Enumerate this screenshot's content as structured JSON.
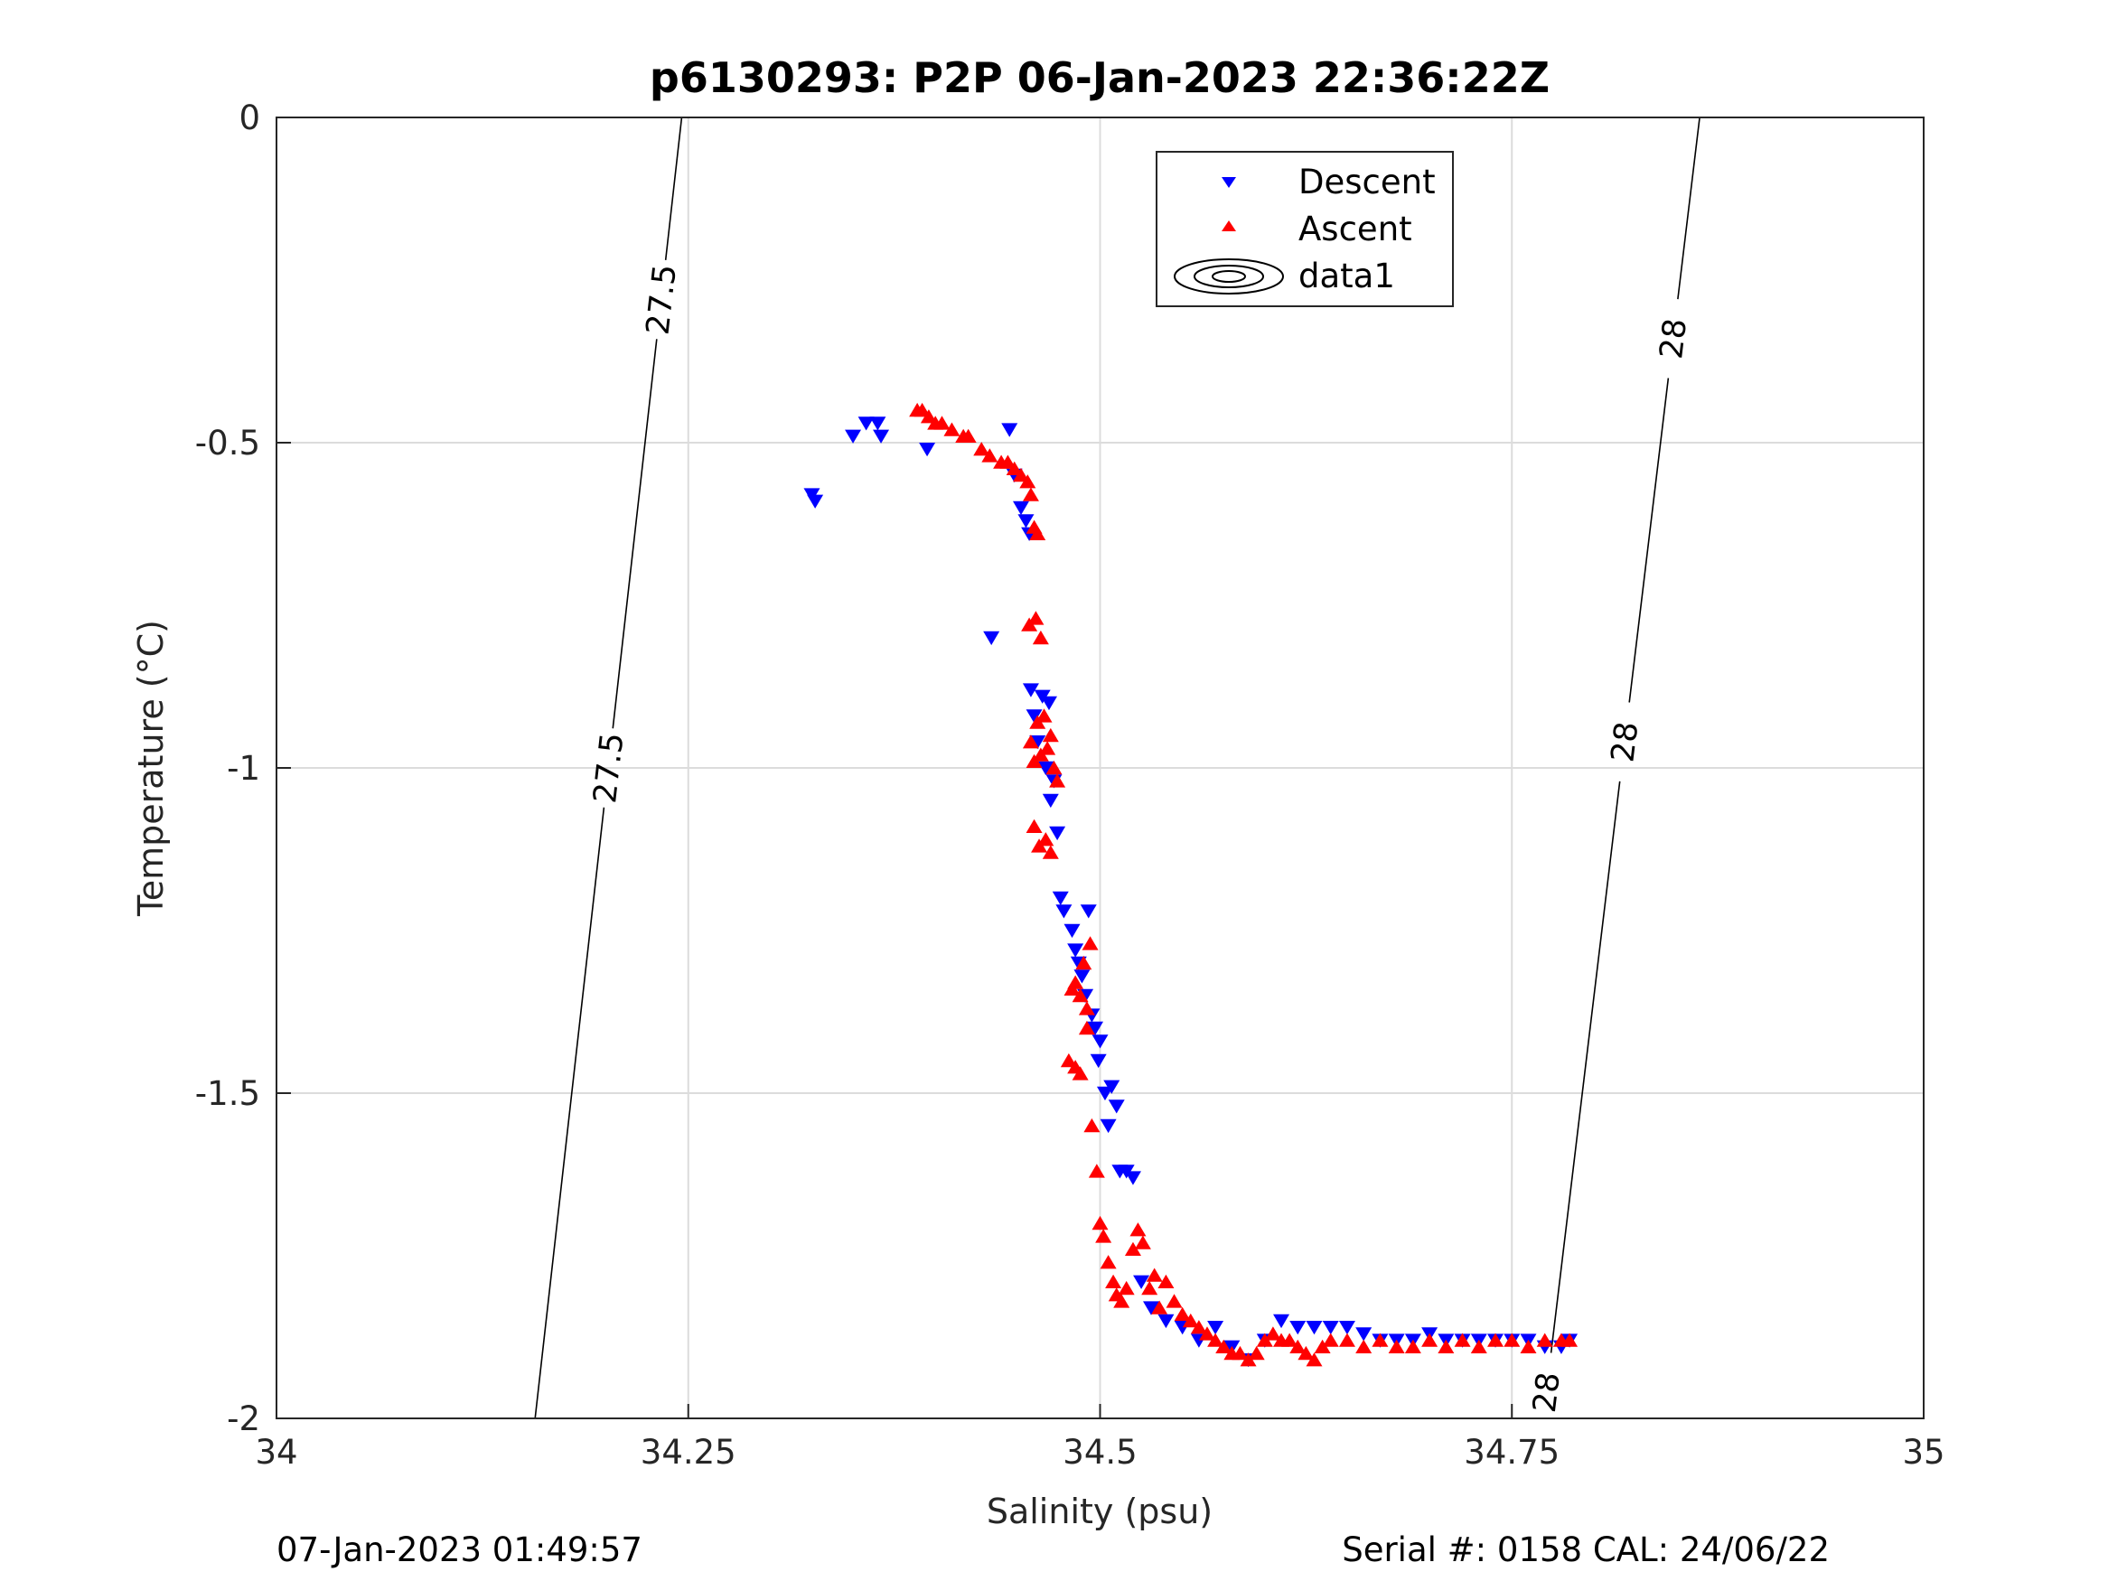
{
  "chart_data": {
    "type": "scatter",
    "title": "p6130293: P2P 06-Jan-2023 22:36:22Z",
    "xlabel": "Salinity (psu)",
    "ylabel": "Temperature (°C)",
    "xlim": [
      34,
      35
    ],
    "ylim": [
      -2,
      0
    ],
    "x_ticks": [
      34,
      34.25,
      34.5,
      34.75,
      35
    ],
    "x_tick_labels": [
      "34",
      "34.25",
      "34.5",
      "34.75",
      "35"
    ],
    "y_ticks": [
      0,
      -0.5,
      -1,
      -1.5,
      -2
    ],
    "y_tick_labels": [
      "0",
      "-0.5",
      "-1",
      "-1.5",
      "-2"
    ],
    "grid": true,
    "legend_position": "top-center",
    "colors": {
      "descent": "#0000ff",
      "ascent": "#ff0000",
      "contour": "#000000",
      "grid": "#dcdcdc"
    },
    "series": [
      {
        "name": "Descent",
        "marker": "triangle-down",
        "points": [
          [
            34.325,
            -0.58
          ],
          [
            34.327,
            -0.59
          ],
          [
            34.35,
            -0.49
          ],
          [
            34.358,
            -0.47
          ],
          [
            34.365,
            -0.47
          ],
          [
            34.367,
            -0.49
          ],
          [
            34.395,
            -0.51
          ],
          [
            34.434,
            -0.8
          ],
          [
            34.445,
            -0.48
          ],
          [
            34.448,
            -0.55
          ],
          [
            34.452,
            -0.6
          ],
          [
            34.455,
            -0.62
          ],
          [
            34.457,
            -0.64
          ],
          [
            34.458,
            -0.88
          ],
          [
            34.46,
            -0.92
          ],
          [
            34.462,
            -0.96
          ],
          [
            34.465,
            -0.89
          ],
          [
            34.467,
            -1.0
          ],
          [
            34.469,
            -0.9
          ],
          [
            34.47,
            -1.05
          ],
          [
            34.472,
            -1.02
          ],
          [
            34.474,
            -1.1
          ],
          [
            34.476,
            -1.2
          ],
          [
            34.478,
            -1.22
          ],
          [
            34.483,
            -1.25
          ],
          [
            34.485,
            -1.28
          ],
          [
            34.487,
            -1.3
          ],
          [
            34.489,
            -1.32
          ],
          [
            34.491,
            -1.35
          ],
          [
            34.493,
            -1.22
          ],
          [
            34.495,
            -1.38
          ],
          [
            34.497,
            -1.4
          ],
          [
            34.499,
            -1.45
          ],
          [
            34.5,
            -1.42
          ],
          [
            34.503,
            -1.5
          ],
          [
            34.505,
            -1.55
          ],
          [
            34.507,
            -1.49
          ],
          [
            34.51,
            -1.52
          ],
          [
            34.512,
            -1.62
          ],
          [
            34.516,
            -1.62
          ],
          [
            34.52,
            -1.63
          ],
          [
            34.525,
            -1.79
          ],
          [
            34.531,
            -1.83
          ],
          [
            34.54,
            -1.85
          ],
          [
            34.55,
            -1.86
          ],
          [
            34.56,
            -1.88
          ],
          [
            34.57,
            -1.86
          ],
          [
            34.58,
            -1.89
          ],
          [
            34.59,
            -1.91
          ],
          [
            34.6,
            -1.88
          ],
          [
            34.61,
            -1.85
          ],
          [
            34.62,
            -1.86
          ],
          [
            34.63,
            -1.86
          ],
          [
            34.64,
            -1.86
          ],
          [
            34.65,
            -1.86
          ],
          [
            34.66,
            -1.87
          ],
          [
            34.67,
            -1.88
          ],
          [
            34.68,
            -1.88
          ],
          [
            34.69,
            -1.88
          ],
          [
            34.7,
            -1.87
          ],
          [
            34.71,
            -1.88
          ],
          [
            34.72,
            -1.88
          ],
          [
            34.73,
            -1.88
          ],
          [
            34.74,
            -1.88
          ],
          [
            34.75,
            -1.88
          ],
          [
            34.76,
            -1.88
          ],
          [
            34.77,
            -1.89
          ],
          [
            34.78,
            -1.89
          ],
          [
            34.785,
            -1.88
          ]
        ]
      },
      {
        "name": "Ascent",
        "marker": "triangle-up",
        "points": [
          [
            34.389,
            -0.45
          ],
          [
            34.392,
            -0.45
          ],
          [
            34.396,
            -0.46
          ],
          [
            34.4,
            -0.47
          ],
          [
            34.404,
            -0.47
          ],
          [
            34.41,
            -0.48
          ],
          [
            34.417,
            -0.49
          ],
          [
            34.42,
            -0.49
          ],
          [
            34.428,
            -0.51
          ],
          [
            34.433,
            -0.52
          ],
          [
            34.44,
            -0.53
          ],
          [
            34.444,
            -0.53
          ],
          [
            34.448,
            -0.54
          ],
          [
            34.452,
            -0.55
          ],
          [
            34.456,
            -0.56
          ],
          [
            34.458,
            -0.58
          ],
          [
            34.46,
            -0.63
          ],
          [
            34.462,
            -0.64
          ],
          [
            34.457,
            -0.78
          ],
          [
            34.461,
            -0.77
          ],
          [
            34.464,
            -0.8
          ],
          [
            34.458,
            -0.96
          ],
          [
            34.46,
            -0.99
          ],
          [
            34.462,
            -0.93
          ],
          [
            34.464,
            -0.98
          ],
          [
            34.466,
            -0.92
          ],
          [
            34.468,
            -0.97
          ],
          [
            34.47,
            -0.95
          ],
          [
            34.472,
            -1.0
          ],
          [
            34.474,
            -1.02
          ],
          [
            34.46,
            -1.09
          ],
          [
            34.463,
            -1.12
          ],
          [
            34.467,
            -1.11
          ],
          [
            34.47,
            -1.13
          ],
          [
            34.483,
            -1.34
          ],
          [
            34.485,
            -1.33
          ],
          [
            34.488,
            -1.35
          ],
          [
            34.49,
            -1.3
          ],
          [
            34.492,
            -1.37
          ],
          [
            34.494,
            -1.27
          ],
          [
            34.481,
            -1.45
          ],
          [
            34.485,
            -1.46
          ],
          [
            34.488,
            -1.47
          ],
          [
            34.492,
            -1.4
          ],
          [
            34.495,
            -1.55
          ],
          [
            34.498,
            -1.62
          ],
          [
            34.5,
            -1.7
          ],
          [
            34.502,
            -1.72
          ],
          [
            34.505,
            -1.76
          ],
          [
            34.508,
            -1.79
          ],
          [
            34.51,
            -1.81
          ],
          [
            34.513,
            -1.82
          ],
          [
            34.516,
            -1.8
          ],
          [
            34.52,
            -1.74
          ],
          [
            34.523,
            -1.71
          ],
          [
            34.526,
            -1.73
          ],
          [
            34.53,
            -1.8
          ],
          [
            34.533,
            -1.78
          ],
          [
            34.536,
            -1.83
          ],
          [
            34.54,
            -1.79
          ],
          [
            34.545,
            -1.82
          ],
          [
            34.55,
            -1.84
          ],
          [
            34.555,
            -1.85
          ],
          [
            34.56,
            -1.86
          ],
          [
            34.565,
            -1.87
          ],
          [
            34.57,
            -1.88
          ],
          [
            34.575,
            -1.89
          ],
          [
            34.58,
            -1.9
          ],
          [
            34.585,
            -1.9
          ],
          [
            34.59,
            -1.91
          ],
          [
            34.595,
            -1.9
          ],
          [
            34.6,
            -1.88
          ],
          [
            34.605,
            -1.87
          ],
          [
            34.61,
            -1.88
          ],
          [
            34.615,
            -1.88
          ],
          [
            34.62,
            -1.89
          ],
          [
            34.625,
            -1.9
          ],
          [
            34.63,
            -1.91
          ],
          [
            34.635,
            -1.89
          ],
          [
            34.64,
            -1.88
          ],
          [
            34.65,
            -1.88
          ],
          [
            34.66,
            -1.89
          ],
          [
            34.67,
            -1.88
          ],
          [
            34.68,
            -1.89
          ],
          [
            34.69,
            -1.89
          ],
          [
            34.7,
            -1.88
          ],
          [
            34.71,
            -1.89
          ],
          [
            34.72,
            -1.88
          ],
          [
            34.73,
            -1.89
          ],
          [
            34.74,
            -1.88
          ],
          [
            34.75,
            -1.88
          ],
          [
            34.76,
            -1.89
          ],
          [
            34.77,
            -1.88
          ],
          [
            34.78,
            -1.88
          ],
          [
            34.785,
            -1.88
          ]
        ]
      },
      {
        "name": "data1",
        "type": "contour",
        "isopycnals": [
          {
            "label": "27.5",
            "points": [
              [
                34.157,
                -2
              ],
              [
                34.246,
                0
              ]
            ]
          },
          {
            "label": "28",
            "points": [
              [
                34.769,
                -2
              ],
              [
                34.864,
                0
              ]
            ]
          }
        ]
      }
    ],
    "contour_labels": [
      "27.5",
      "27.5",
      "28",
      "28",
      "28"
    ]
  },
  "footer": {
    "timestamp": "07-Jan-2023 01:49:57",
    "serial": "Serial #: 0158  CAL: 24/06/22"
  },
  "legend": {
    "descent": "Descent",
    "ascent": "Ascent",
    "data1": "data1"
  }
}
